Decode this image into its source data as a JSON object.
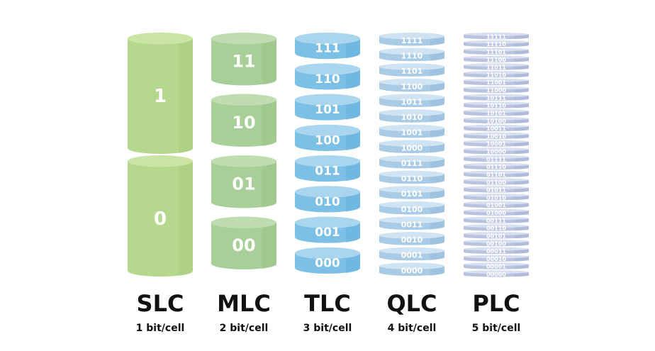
{
  "columns": [
    {
      "name": "SLC",
      "sub": "1 bit/cell",
      "top_color": "#c9e4a4",
      "body_color": "#b6d88e",
      "shade_color": "#a3c97a",
      "text_color": "#ffffff",
      "labels": [
        "1",
        "0"
      ]
    },
    {
      "name": "MLC",
      "sub": "2 bit/cell",
      "top_color": "#bfddb1",
      "body_color": "#a9cf98",
      "shade_color": "#94bf84",
      "text_color": "#ffffff",
      "labels": [
        "11",
        "10",
        "01",
        "00"
      ]
    },
    {
      "name": "TLC",
      "sub": "3 bit/cell",
      "top_color": "#a9d6ee",
      "body_color": "#7cc0e6",
      "shade_color": "#62aedb",
      "text_color": "#ffffff",
      "labels": [
        "111",
        "110",
        "101",
        "100",
        "011",
        "010",
        "001",
        "000"
      ]
    },
    {
      "name": "QLC",
      "sub": "4 bit/cell",
      "top_color": "#cfe3f2",
      "body_color": "#a9cbe6",
      "shade_color": "#93b9da",
      "text_color": "#ffffff",
      "labels": [
        "1111",
        "1110",
        "1101",
        "1100",
        "1011",
        "1010",
        "1001",
        "1000",
        "0111",
        "0110",
        "0101",
        "0100",
        "0011",
        "0010",
        "0001",
        "0000"
      ]
    },
    {
      "name": "PLC",
      "sub": "5 bit/cell",
      "top_color": "#d8dff0",
      "body_color": "#b9c3e0",
      "shade_color": "#a6b1d4",
      "text_color": "#ffffff",
      "labels": [
        "11111",
        "11110",
        "11101",
        "11100",
        "11011",
        "11010",
        "11001",
        "11000",
        "10111",
        "10110",
        "10101",
        "10100",
        "10011",
        "10010",
        "10001",
        "10000",
        "01111",
        "01110",
        "01101",
        "01100",
        "01011",
        "01010",
        "01001",
        "01000",
        "00111",
        "00110",
        "00101",
        "00100",
        "00011",
        "00010",
        "00001",
        "00000"
      ]
    }
  ]
}
